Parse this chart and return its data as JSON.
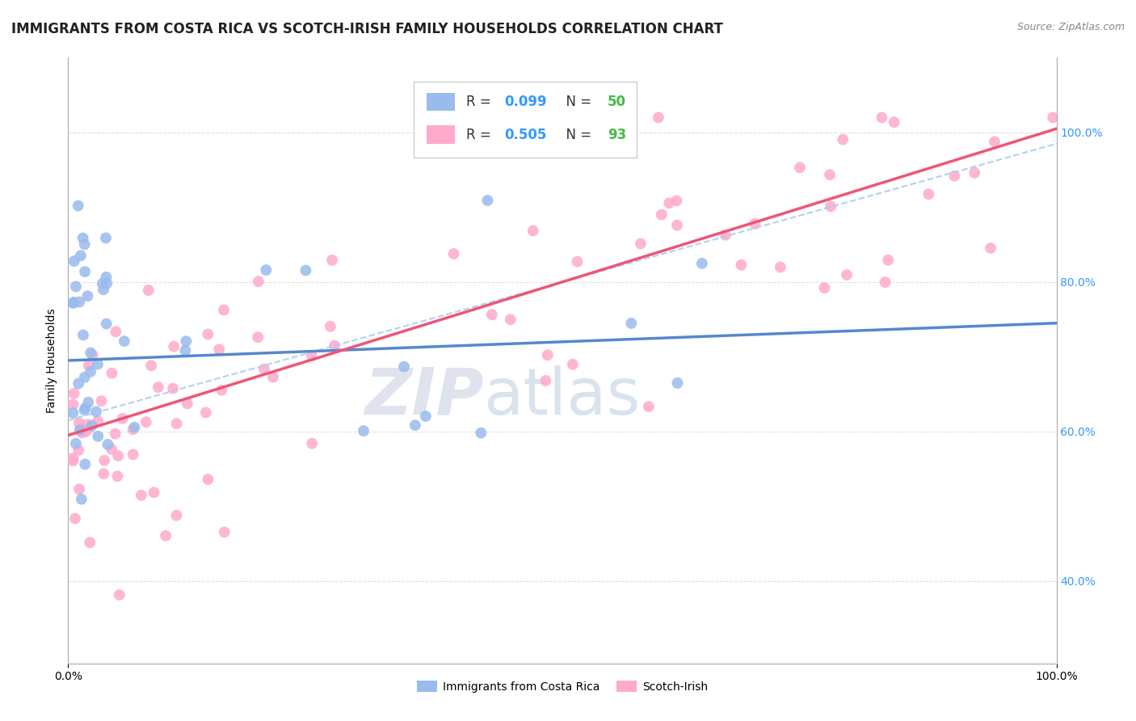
{
  "title": "IMMIGRANTS FROM COSTA RICA VS SCOTCH-IRISH FAMILY HOUSEHOLDS CORRELATION CHART",
  "source": "Source: ZipAtlas.com",
  "ylabel": "Family Households",
  "legend_blue_label": "Immigrants from Costa Rica",
  "legend_pink_label": "Scotch-Irish",
  "blue_line_color": "#5588CC",
  "pink_line_color": "#EE5577",
  "blue_scatter_color": "#99BBEE",
  "pink_scatter_color": "#FFAACC",
  "dashed_line_color": "#AACCEE",
  "r_color": "#3399FF",
  "n_color": "#44BB44",
  "grid_color": "#DDDDDD",
  "background_color": "#FFFFFF",
  "right_tick_color": "#3399FF",
  "title_fontsize": 12,
  "source_fontsize": 9,
  "tick_fontsize": 10,
  "ylabel_fontsize": 10,
  "legend_fontsize": 12,
  "blue_line_start_y": 0.695,
  "blue_line_end_y": 0.745,
  "pink_line_start_y": 0.595,
  "pink_line_end_y": 1.005,
  "dashed_line_start_y": 0.615,
  "dashed_line_end_y": 0.985,
  "ymin": 0.29,
  "ymax": 1.1,
  "xmin": 0.0,
  "xmax": 1.0,
  "right_yticks": [
    0.4,
    0.6,
    0.8,
    1.0
  ],
  "right_yticklabels": [
    "40.0%",
    "60.0%",
    "80.0%",
    "100.0%"
  ],
  "watermark_zip_color": "#D0D8E8",
  "watermark_atlas_color": "#B8CCE0",
  "scatter_size": 100
}
